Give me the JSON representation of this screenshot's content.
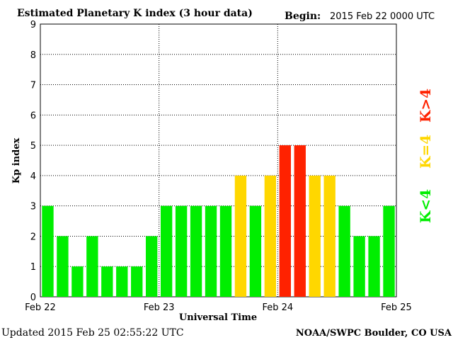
{
  "header": {
    "title": "Estimated Planetary K index (3 hour data)",
    "begin_label": "Begin:",
    "begin_value": "2015 Feb 22 0000 UTC"
  },
  "footer": {
    "updated": "Updated 2015 Feb 25 02:55:22 UTC",
    "source": "NOAA/SWPC Boulder, CO USA"
  },
  "legend": {
    "low": "K<4",
    "mid": "K=4",
    "high": "K>4"
  },
  "colors": {
    "low": "#00ee00",
    "mid": "#ffd700",
    "high": "#ff2200"
  },
  "chart_data": {
    "type": "bar",
    "xlabel": "Universal Time",
    "ylabel": "Kp index",
    "ylim": [
      0,
      9
    ],
    "y_ticks": [
      "0",
      "1",
      "2",
      "3",
      "4",
      "5",
      "6",
      "7",
      "8",
      "9"
    ],
    "x_ticks": [
      "Feb 22",
      "Feb 23",
      "Feb 24",
      "Feb 25"
    ],
    "bars_per_day": 8,
    "grid": "dotted",
    "values": [
      3,
      2,
      1,
      2,
      1,
      1,
      1,
      2,
      3,
      3,
      3,
      3,
      3,
      4,
      3,
      4,
      5,
      5,
      4,
      4,
      3,
      2,
      2,
      3
    ]
  }
}
